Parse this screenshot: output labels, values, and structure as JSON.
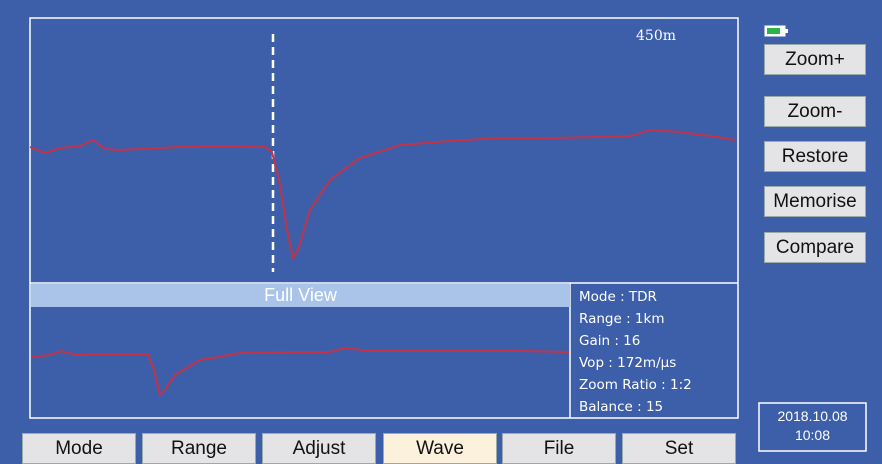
{
  "screen": {
    "range_marker": "450m",
    "full_view_label": "Full View",
    "side_buttons": [
      "Zoom+",
      "Zoom-",
      "Restore",
      "Memorise",
      "Compare"
    ],
    "bottom_buttons": [
      "Mode",
      "Range",
      "Adjust",
      "Wave",
      "File",
      "Set"
    ],
    "info": [
      "Mode : TDR",
      "Range : 1km",
      "Gain : 16",
      "Vop : 172m/μs",
      "Zoom Ratio : 1:2",
      "Balance : 15"
    ],
    "date": "2018.10.08",
    "time": "10:08"
  }
}
